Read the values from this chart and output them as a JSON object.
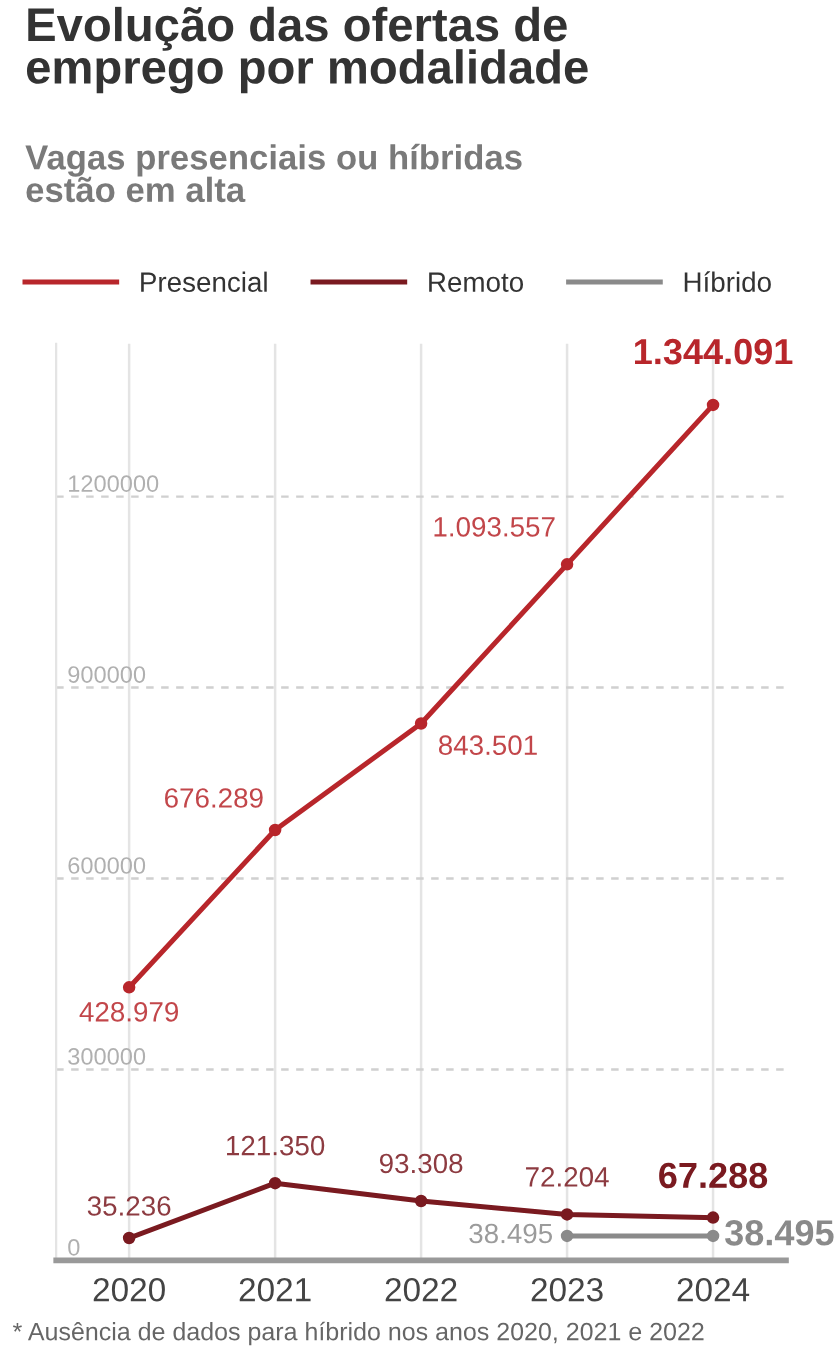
{
  "chart_data": {
    "type": "line",
    "title": "Evolução das ofertas de\nemprego por modalidade",
    "subtitle": "Vagas presenciais ou híbridas\nestão em alta",
    "categories": [
      "2020",
      "2021",
      "2022",
      "2023",
      "2024"
    ],
    "series": [
      {
        "name": "Presencial",
        "color": "#b8262b",
        "values": [
          428979,
          676289,
          843501,
          1093557,
          1344091
        ],
        "value_labels": [
          "428.979",
          "676.289",
          "843.501",
          "1.093.557",
          "1.344.091"
        ]
      },
      {
        "name": "Remoto",
        "color": "#7a1a20",
        "values": [
          35236,
          121350,
          93308,
          72204,
          67288
        ],
        "value_labels": [
          "35.236",
          "121.350",
          "93.308",
          "72.204",
          "67.288"
        ]
      },
      {
        "name": "Híbrido",
        "color": "#8a8a8a",
        "values": [
          null,
          null,
          null,
          38495,
          38495
        ],
        "value_labels": [
          null,
          null,
          null,
          "38.495",
          "38.495"
        ]
      }
    ],
    "ylim": [
      0,
      1440000
    ],
    "yticks": [
      0,
      300000,
      600000,
      900000,
      1200000
    ],
    "grid": true,
    "legend": "top",
    "marker": "circle",
    "line_style": "solid",
    "annotations": [
      "* Ausência de dados para híbrido nos anos 2020, 2021 e 2022"
    ]
  }
}
